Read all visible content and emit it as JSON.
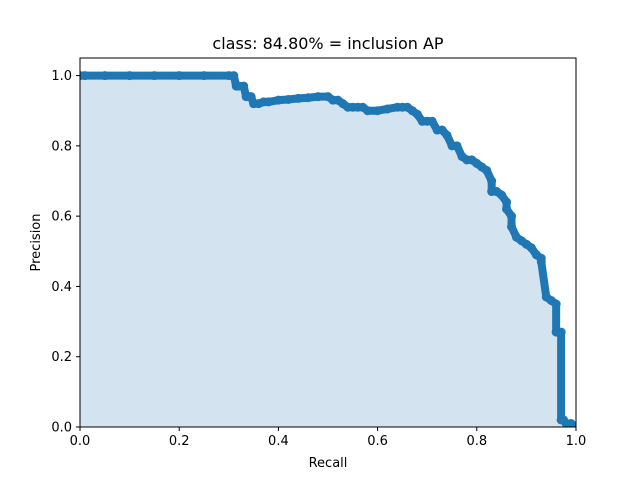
{
  "chart_data": {
    "type": "area",
    "title": "class: 84.80% = inclusion AP",
    "xlabel": "Recall",
    "ylabel": "Precision",
    "xlim": [
      0.0,
      1.0
    ],
    "ylim": [
      0.0,
      1.05
    ],
    "xticks": [
      "0.0",
      "0.2",
      "0.4",
      "0.6",
      "0.8",
      "1.0"
    ],
    "yticks": [
      "0.0",
      "0.2",
      "0.4",
      "0.6",
      "0.8",
      "1.0"
    ],
    "grid": false,
    "legend": "none",
    "colors": {
      "line": "#1f77b4",
      "fill": "#d3e3f0",
      "interp": "#e8a8a8"
    },
    "series": [
      {
        "values_x": [
          0.0,
          0.01,
          0.05,
          0.1,
          0.15,
          0.2,
          0.25,
          0.3,
          0.31,
          0.315,
          0.32,
          0.33,
          0.335,
          0.34,
          0.345,
          0.35,
          0.36,
          0.37,
          0.38,
          0.4,
          0.42,
          0.44,
          0.46,
          0.48,
          0.5,
          0.51,
          0.52,
          0.53,
          0.54,
          0.55,
          0.56,
          0.57,
          0.58,
          0.6,
          0.62,
          0.64,
          0.65,
          0.66,
          0.67,
          0.68,
          0.69,
          0.7,
          0.71,
          0.72,
          0.73,
          0.74,
          0.75,
          0.76,
          0.77,
          0.78,
          0.79,
          0.8,
          0.81,
          0.82,
          0.83,
          0.83,
          0.84,
          0.85,
          0.86,
          0.86,
          0.87,
          0.87,
          0.88,
          0.89,
          0.9,
          0.91,
          0.92,
          0.93,
          0.93,
          0.94,
          0.95,
          0.96,
          0.96,
          0.97,
          0.97,
          0.975,
          0.98,
          0.99,
          1.0
        ],
        "values_y": [
          1.0,
          1.0,
          1.0,
          1.0,
          1.0,
          1.0,
          1.0,
          1.0,
          1.0,
          0.97,
          0.97,
          0.97,
          0.94,
          0.94,
          0.94,
          0.92,
          0.92,
          0.925,
          0.925,
          0.93,
          0.932,
          0.935,
          0.937,
          0.94,
          0.94,
          0.93,
          0.93,
          0.92,
          0.91,
          0.91,
          0.91,
          0.91,
          0.9,
          0.9,
          0.905,
          0.91,
          0.91,
          0.91,
          0.9,
          0.89,
          0.87,
          0.87,
          0.87,
          0.845,
          0.845,
          0.83,
          0.8,
          0.8,
          0.77,
          0.76,
          0.76,
          0.75,
          0.74,
          0.73,
          0.7,
          0.67,
          0.67,
          0.66,
          0.64,
          0.62,
          0.6,
          0.57,
          0.54,
          0.53,
          0.52,
          0.51,
          0.49,
          0.48,
          0.47,
          0.37,
          0.36,
          0.35,
          0.27,
          0.27,
          0.02,
          0.02,
          0.01,
          0.01,
          0.0
        ]
      }
    ]
  }
}
